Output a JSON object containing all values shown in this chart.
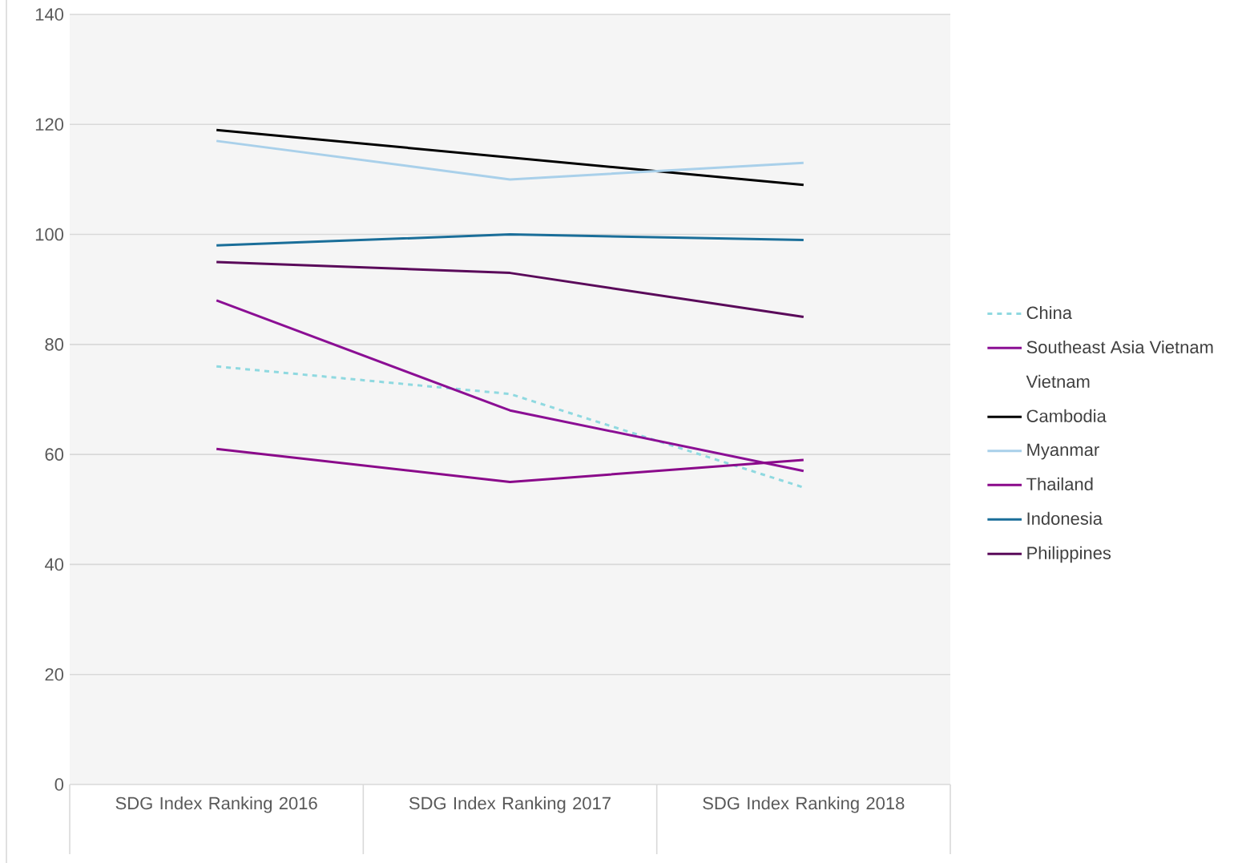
{
  "chart_data": {
    "type": "line",
    "categories": [
      "SDG Index Ranking 2016",
      "SDG Index Ranking 2017",
      "SDG Index Ranking 2018"
    ],
    "ylim": [
      0,
      140
    ],
    "yticks": [
      0,
      20,
      40,
      60,
      80,
      100,
      120,
      140
    ],
    "grid": "y",
    "legend": "right",
    "line_style": "solid",
    "series": [
      {
        "name": "China",
        "color": "#8fd9e0",
        "values": [
          76,
          71,
          54
        ],
        "line_style": "dashed"
      },
      {
        "name": "Southeast Asia Vietnam",
        "color": "#8b0f94",
        "values": [
          88,
          68,
          57
        ]
      },
      {
        "name": "Vietnam",
        "values": [
          null,
          null,
          null
        ]
      },
      {
        "name": "Cambodia",
        "color": "#000000",
        "values": [
          119,
          114,
          109
        ]
      },
      {
        "name": "Myanmar",
        "color": "#a9d0ea",
        "values": [
          117,
          110,
          113
        ]
      },
      {
        "name": "Thailand",
        "color": "#8a0a8a",
        "values": [
          61,
          55,
          59
        ]
      },
      {
        "name": "Indonesia",
        "color": "#1a6e99",
        "values": [
          98,
          100,
          99
        ]
      },
      {
        "name": "Philippines",
        "color": "#5a0a5a",
        "values": [
          95,
          93,
          85
        ]
      }
    ]
  }
}
